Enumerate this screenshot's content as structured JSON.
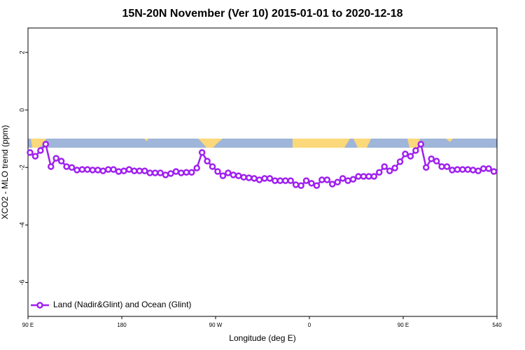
{
  "chart_data": {
    "type": "line",
    "title": "15N-20N November (Ver 10)   2015-01-01 to 2020-12-18",
    "x_label": "Longitude (deg E)",
    "y_label": "XCO2 - MLO trend (ppm)",
    "x": [
      92,
      97,
      102,
      107,
      112,
      117,
      122,
      127,
      132,
      137,
      142,
      147,
      152,
      157,
      162,
      167,
      172,
      177,
      182,
      187,
      192,
      197,
      202,
      207,
      212,
      217,
      222,
      227,
      232,
      237,
      242,
      247,
      252,
      257,
      262,
      267,
      272,
      277,
      282,
      287,
      292,
      297,
      302,
      307,
      312,
      317,
      322,
      327,
      332,
      337,
      342,
      347,
      352,
      357,
      362,
      367,
      372,
      377,
      382,
      387,
      392,
      397,
      402,
      407,
      412,
      417,
      422,
      427,
      432,
      437,
      442,
      447,
      452,
      457,
      462,
      467,
      472,
      477,
      482,
      487,
      492,
      497,
      502,
      507,
      512,
      517,
      522,
      527,
      532,
      537
    ],
    "series": [
      {
        "name": "Land (Nadir&Glint) and Ocean (Glint)",
        "color": "#a020f0",
        "values": [
          -1.48,
          -1.61,
          -1.41,
          -1.19,
          -1.97,
          -1.68,
          -1.78,
          -1.97,
          -2.0,
          -2.09,
          -2.07,
          -2.07,
          -2.09,
          -2.09,
          -2.12,
          -2.07,
          -2.07,
          -2.14,
          -2.12,
          -2.07,
          -2.12,
          -2.12,
          -2.12,
          -2.19,
          -2.19,
          -2.19,
          -2.26,
          -2.21,
          -2.14,
          -2.19,
          -2.17,
          -2.17,
          -2.02,
          -1.48,
          -1.78,
          -1.97,
          -2.14,
          -2.29,
          -2.19,
          -2.26,
          -2.29,
          -2.34,
          -2.36,
          -2.38,
          -2.43,
          -2.38,
          -2.38,
          -2.46,
          -2.46,
          -2.46,
          -2.46,
          -2.6,
          -2.63,
          -2.46,
          -2.55,
          -2.63,
          -2.43,
          -2.43,
          -2.58,
          -2.51,
          -2.38,
          -2.46,
          -2.41,
          -2.31,
          -2.31,
          -2.31,
          -2.31,
          -2.17,
          -1.97,
          -2.12,
          -2.02,
          -1.8,
          -1.53,
          -1.61,
          -1.41,
          -1.19,
          -2.0,
          -1.7,
          -1.78,
          -1.97,
          -1.97,
          -2.09,
          -2.07,
          -2.07,
          -2.07,
          -2.09,
          -2.12,
          -2.04,
          -2.04,
          -2.14
        ]
      }
    ],
    "xlim": [
      90,
      540
    ],
    "xticks": [
      {
        "value": 90,
        "label": "90 E"
      },
      180,
      {
        "value": 270,
        "label": "90 W"
      },
      {
        "value": 360,
        "label": "0"
      },
      {
        "value": 450,
        "label": "90 E"
      },
      540
    ],
    "ylim": [
      -7.18,
      2.85
    ],
    "yticks": [
      2,
      0,
      -2,
      -4,
      -6
    ],
    "legend_position": "bottom-left"
  }
}
